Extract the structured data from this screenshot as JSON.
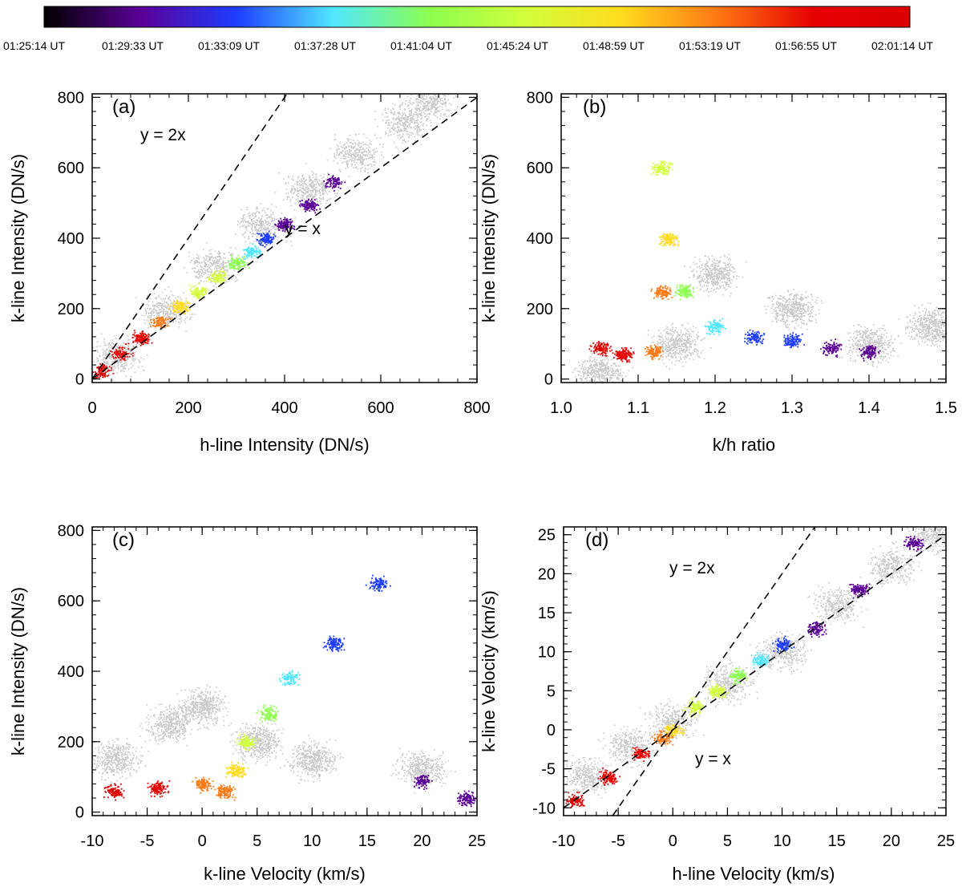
{
  "colorbar": {
    "labels": [
      "01:25:14 UT",
      "01:29:33 UT",
      "01:33:09 UT",
      "01:37:28 UT",
      "01:41:04 UT",
      "01:45:24 UT",
      "01:48:59 UT",
      "01:53:19 UT",
      "01:56:55 UT",
      "02:01:14 UT"
    ],
    "colors": [
      "#000000",
      "#5a0096",
      "#1e3cff",
      "#50e6ff",
      "#8cff50",
      "#d2ff3c",
      "#ffdc1e",
      "#ff7814",
      "#e60000",
      "#dc0000"
    ]
  },
  "colors": {
    "background_points": "#c8c8c8",
    "axes": "#000000"
  },
  "chart_data": [
    {
      "type": "scatter",
      "panel": "(a)",
      "xlabel": "h-line Intensity (DN/s)",
      "ylabel": "k-line Intensity (DN/s)",
      "xlim": [
        0,
        800
      ],
      "ylim": [
        -10,
        810
      ],
      "xticks": [
        0,
        200,
        400,
        600,
        800
      ],
      "yticks": [
        0,
        200,
        400,
        600,
        800
      ],
      "reference_lines": [
        {
          "label": "y = 2x",
          "slope": 2
        },
        {
          "label": "y = x",
          "slope": 1
        }
      ],
      "series": [
        {
          "name": "time-colored",
          "points": [
            [
              20,
              24
            ],
            [
              60,
              72
            ],
            [
              100,
              118
            ],
            [
              140,
              163
            ],
            [
              180,
              206
            ],
            [
              220,
              248
            ],
            [
              260,
              290
            ],
            [
              300,
              330
            ],
            [
              330,
              362
            ],
            [
              360,
              400
            ],
            [
              400,
              440
            ],
            [
              450,
              495
            ],
            [
              500,
              560
            ]
          ]
        },
        {
          "name": "background (grey)",
          "points": [
            [
              50,
              65
            ],
            [
              150,
              190
            ],
            [
              250,
              320
            ],
            [
              350,
              440
            ],
            [
              450,
              540
            ],
            [
              550,
              640
            ],
            [
              650,
              730
            ],
            [
              700,
              790
            ]
          ]
        }
      ]
    },
    {
      "type": "scatter",
      "panel": "(b)",
      "xlabel": "k/h ratio",
      "ylabel": "k-line Intensity (DN/s)",
      "xlim": [
        1.0,
        1.5
      ],
      "ylim": [
        -10,
        810
      ],
      "xticks": [
        1.0,
        1.1,
        1.2,
        1.3,
        1.4,
        1.5
      ],
      "xticklabels": [
        "1.0",
        "1.1",
        "1.2",
        "1.3",
        "1.4",
        "1.5"
      ],
      "yticks": [
        0,
        200,
        400,
        600,
        800
      ],
      "series": [
        {
          "name": "time-colored",
          "points": [
            [
              1.05,
              90
            ],
            [
              1.08,
              70
            ],
            [
              1.12,
              80
            ],
            [
              1.13,
              250
            ],
            [
              1.14,
              400
            ],
            [
              1.13,
              600
            ],
            [
              1.16,
              250
            ],
            [
              1.2,
              150
            ],
            [
              1.25,
              120
            ],
            [
              1.3,
              110
            ],
            [
              1.35,
              90
            ],
            [
              1.4,
              80
            ]
          ]
        },
        {
          "name": "background (grey)",
          "points": [
            [
              1.05,
              20
            ],
            [
              1.15,
              100
            ],
            [
              1.2,
              300
            ],
            [
              1.3,
              200
            ],
            [
              1.4,
              100
            ],
            [
              1.48,
              150
            ]
          ]
        }
      ]
    },
    {
      "type": "scatter",
      "panel": "(c)",
      "xlabel": "k-line Velocity (km/s)",
      "ylabel": "k-line Intensity (DN/s)",
      "xlim": [
        -10,
        25
      ],
      "ylim": [
        -10,
        810
      ],
      "xticks": [
        -10,
        -5,
        0,
        5,
        10,
        15,
        20,
        25
      ],
      "yticks": [
        0,
        200,
        400,
        600,
        800
      ],
      "series": [
        {
          "name": "time-colored",
          "points": [
            [
              -8,
              60
            ],
            [
              -4,
              70
            ],
            [
              0,
              80
            ],
            [
              2,
              60
            ],
            [
              3,
              120
            ],
            [
              4,
              200
            ],
            [
              6,
              280
            ],
            [
              8,
              380
            ],
            [
              12,
              480
            ],
            [
              16,
              650
            ],
            [
              20,
              90
            ],
            [
              24,
              40
            ]
          ]
        },
        {
          "name": "background (grey)",
          "points": [
            [
              -8,
              150
            ],
            [
              -3,
              250
            ],
            [
              0,
              300
            ],
            [
              5,
              200
            ],
            [
              10,
              150
            ],
            [
              20,
              120
            ]
          ]
        }
      ]
    },
    {
      "type": "scatter",
      "panel": "(d)",
      "xlabel": "h-line Velocity (km/s)",
      "ylabel": "k-line Velocity (km/s)",
      "xlim": [
        -10,
        25
      ],
      "ylim": [
        -11,
        26
      ],
      "xticks": [
        -10,
        -5,
        0,
        5,
        10,
        15,
        20,
        25
      ],
      "yticks": [
        -10,
        -5,
        0,
        5,
        10,
        15,
        20,
        25
      ],
      "reference_lines": [
        {
          "label": "y = 2x",
          "slope": 2
        },
        {
          "label": "y = x",
          "slope": 1
        }
      ],
      "series": [
        {
          "name": "time-colored",
          "points": [
            [
              -9,
              -9
            ],
            [
              -6,
              -6
            ],
            [
              -3,
              -3
            ],
            [
              -1,
              -1
            ],
            [
              0,
              0
            ],
            [
              2,
              3
            ],
            [
              4,
              5
            ],
            [
              6,
              7
            ],
            [
              8,
              9
            ],
            [
              10,
              11
            ],
            [
              13,
              13
            ],
            [
              17,
              18
            ],
            [
              22,
              24
            ]
          ]
        },
        {
          "name": "background (grey)",
          "points": [
            [
              -8,
              -6
            ],
            [
              -4,
              -2
            ],
            [
              0,
              1
            ],
            [
              5,
              6
            ],
            [
              10,
              10
            ],
            [
              15,
              16
            ],
            [
              20,
              21
            ],
            [
              24,
              25
            ]
          ]
        }
      ]
    }
  ]
}
